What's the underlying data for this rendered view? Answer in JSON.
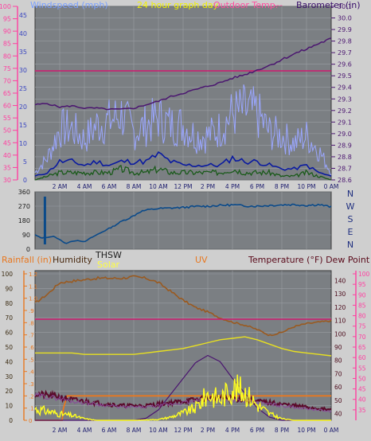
{
  "header": {
    "windspeed_label": "Windspeed (mph)",
    "graph_day_label": "24 hour graph day",
    "outdoor_temp_label": "Outdoor Temp.",
    "dash_label": "---",
    "barometer_label": "Barometer (in)"
  },
  "lower_header": {
    "rainfall_label": "Rainfall (in)",
    "humidity_label": "Humidity",
    "thsw_label": "THSW",
    "solar_label": "Solar",
    "uv_label": "UV",
    "temp_dew_label": "Temperature (°F) Dew Point (°F)"
  },
  "direction_labels": [
    "N",
    "W",
    "S",
    "E",
    "N"
  ],
  "x_tick_labels": [
    "2 AM",
    "4 AM",
    "6 AM",
    "8 AM",
    "10 AM",
    "12 PM",
    "2 PM",
    "4 PM",
    "6 PM",
    "8 PM",
    "10 PM",
    "0 AM"
  ],
  "colors": {
    "background": "#cfcfcf",
    "plot_bg": "#7b7f83",
    "grid": "#9a9ea3",
    "left_axis": "#ff3fa0",
    "barometer": "#4b1670",
    "wind_gust": "#9aa6ff",
    "wind_avg": "#0a1aa0",
    "wind_low": "#1a5a1a",
    "outdoor_temp": "#d01870",
    "direction": "#0a4a8a",
    "humidity": "#9a5a20",
    "temp": "#6a0a2a",
    "dew": "#6a0a2a",
    "uv": "#e87820",
    "solar": "#ffff20",
    "rain": "#e87820"
  },
  "chart_data": [
    {
      "type": "line",
      "title": "24 hour graph day",
      "ylabel_left": "Windspeed (mph)",
      "ylabel_right": "Barometer (in)",
      "x_range_hours": [
        0,
        24
      ],
      "ylim_left": [
        30,
        100
      ],
      "ylim_right": [
        28.6,
        30.1
      ],
      "left_ticks": [
        30,
        35,
        40,
        45,
        50,
        55,
        60,
        65,
        70,
        75,
        80,
        85,
        90,
        95,
        100
      ],
      "right_ticks": [
        28.6,
        28.7,
        28.8,
        28.9,
        29.0,
        29.1,
        29.2,
        29.3,
        29.4,
        29.5,
        29.6,
        29.7,
        29.8,
        29.9,
        30.0,
        30.1
      ],
      "wind_ticks": [
        0,
        5,
        10,
        15,
        20,
        25,
        30,
        35,
        40,
        45
      ],
      "series": [
        {
          "name": "Barometer (in)",
          "axis": "right",
          "x": [
            0,
            1,
            2,
            3,
            4,
            5,
            6,
            7,
            8,
            9,
            10,
            11,
            12,
            13,
            14,
            15,
            16,
            17,
            18,
            19,
            20,
            21,
            22,
            23,
            24
          ],
          "values": [
            29.25,
            29.26,
            29.23,
            29.24,
            29.22,
            29.22,
            29.21,
            29.21,
            29.22,
            29.25,
            29.28,
            29.32,
            29.35,
            29.38,
            29.41,
            29.44,
            29.48,
            29.51,
            29.55,
            29.59,
            29.64,
            29.69,
            29.73,
            29.78,
            29.82
          ]
        },
        {
          "name": "Outdoor Temp.",
          "axis": "left",
          "x": [
            0,
            24
          ],
          "values": [
            74,
            74
          ]
        },
        {
          "name": "Windspeed gust",
          "x": [
            0,
            1,
            2,
            3,
            4,
            5,
            6,
            7,
            8,
            9,
            10,
            11,
            12,
            13,
            14,
            15,
            16,
            17,
            18,
            19,
            20,
            21,
            22,
            23,
            24
          ],
          "values": [
            2,
            6,
            14,
            14,
            11,
            15,
            16,
            18,
            13,
            15,
            17,
            15,
            15,
            12,
            12,
            14,
            18,
            19,
            18,
            13,
            12,
            10,
            12,
            8,
            2
          ]
        },
        {
          "name": "Windspeed avg",
          "x": [
            0,
            1,
            2,
            3,
            4,
            5,
            6,
            7,
            8,
            9,
            10,
            11,
            12,
            13,
            14,
            15,
            16,
            17,
            18,
            19,
            20,
            21,
            22,
            23,
            24
          ],
          "values": [
            1,
            2,
            5,
            5,
            4,
            5,
            4,
            5,
            5,
            5,
            7,
            5,
            4,
            4,
            4,
            4,
            6,
            5,
            5,
            4,
            3,
            3,
            4,
            2,
            1
          ]
        },
        {
          "name": "Windspeed low",
          "x": [
            0,
            1,
            2,
            3,
            4,
            5,
            6,
            7,
            8,
            9,
            10,
            11,
            12,
            13,
            14,
            15,
            16,
            17,
            18,
            19,
            20,
            21,
            22,
            23,
            24
          ],
          "values": [
            0,
            1,
            2,
            2,
            2,
            2,
            2,
            3,
            2,
            2,
            3,
            2,
            2,
            2,
            2,
            2,
            3,
            2,
            2,
            2,
            1,
            1,
            2,
            1,
            0
          ]
        }
      ]
    },
    {
      "type": "line",
      "title": "",
      "ylabel_left": "Wind direction",
      "ylim_left": [
        0,
        360
      ],
      "left_ticks": [
        0,
        90,
        180,
        270,
        360
      ],
      "series": [
        {
          "name": "Wind direction",
          "x": [
            0,
            0.5,
            1,
            1.5,
            2,
            2.5,
            3,
            3.5,
            4,
            4.5,
            5,
            5.5,
            6,
            6.5,
            7,
            7.5,
            8,
            8.5,
            9,
            9.5,
            10,
            11,
            12,
            13,
            14,
            15,
            16,
            17,
            18,
            19,
            20,
            21,
            22,
            23,
            24
          ],
          "values": [
            90,
            70,
            75,
            80,
            60,
            35,
            50,
            55,
            45,
            70,
            90,
            110,
            130,
            150,
            175,
            190,
            210,
            235,
            245,
            250,
            255,
            258,
            262,
            268,
            270,
            275,
            278,
            272,
            270,
            275,
            278,
            280,
            275,
            280,
            265
          ]
        }
      ]
    },
    {
      "type": "line",
      "title": "",
      "ylabel_left": "Rainfall (in)",
      "ylabel_right": "Temperature (°F) Dew Point (°F)",
      "ylim_humidity": [
        0,
        100
      ],
      "ylim_rain": [
        0,
        1.2
      ],
      "ylim_uv": [
        0,
        14
      ],
      "ylim_temp": [
        35,
        145
      ],
      "ylim_dew": [
        30,
        100
      ],
      "humidity_ticks": [
        0,
        10,
        20,
        30,
        40,
        50,
        60,
        70,
        80,
        90,
        100
      ],
      "rain_ticks": [
        0,
        0.1,
        0.2,
        0.3,
        0.4,
        0.5,
        0.6,
        0.7,
        0.8,
        0.9,
        1.0,
        1.1,
        1.2
      ],
      "uv_ticks": [
        0,
        1,
        2,
        3,
        4,
        5,
        6,
        7,
        8,
        9,
        10,
        11,
        12,
        13,
        14
      ],
      "temp_ticks": [
        40,
        50,
        60,
        70,
        80,
        90,
        100,
        110,
        120,
        130,
        140
      ],
      "dew_ticks": [
        35,
        40,
        45,
        50,
        55,
        60,
        65,
        70,
        75,
        80,
        85,
        90,
        95,
        100
      ],
      "series": [
        {
          "name": "Humidity",
          "x": [
            0,
            1,
            2,
            3,
            4,
            5,
            6,
            7,
            8,
            9,
            10,
            11,
            12,
            13,
            14,
            15,
            16,
            17,
            18,
            19,
            20,
            21,
            22,
            23,
            24
          ],
          "values": [
            80,
            86,
            94,
            95,
            96,
            97,
            97,
            97,
            98,
            97,
            94,
            88,
            82,
            77,
            74,
            70,
            67,
            65,
            62,
            58,
            60,
            64,
            66,
            67,
            68
          ]
        },
        {
          "name": "Outdoor Temp.",
          "x": [
            0,
            24
          ],
          "values": [
            69,
            69
          ]
        },
        {
          "name": "THSW",
          "x": [
            0,
            1,
            2,
            3,
            4,
            5,
            6,
            7,
            8,
            9,
            10,
            11,
            12,
            13,
            14,
            15,
            16,
            17,
            18,
            19,
            20,
            21,
            22,
            23,
            24
          ],
          "values": [
            46,
            46,
            46,
            46,
            45,
            45,
            45,
            45,
            45,
            46,
            47,
            48,
            49,
            51,
            53,
            55,
            56,
            57,
            55,
            52,
            49,
            47,
            46,
            45,
            44
          ]
        },
        {
          "name": "Temperature",
          "x": [
            0,
            1,
            2,
            3,
            4,
            5,
            6,
            7,
            8,
            9,
            10,
            11,
            12,
            13,
            14,
            15,
            16,
            17,
            18,
            19,
            20,
            21,
            22,
            23,
            24
          ],
          "values": [
            18,
            17,
            16,
            14,
            13,
            12,
            11,
            10,
            10,
            10,
            11,
            12,
            13,
            14,
            15,
            15,
            15,
            14,
            13,
            12,
            11,
            10,
            9,
            8,
            7
          ]
        },
        {
          "name": "Dew Point",
          "x": [
            0,
            1,
            2,
            3,
            4,
            5,
            6,
            7,
            8,
            9,
            10,
            11,
            12,
            13,
            14,
            15,
            16,
            17,
            18,
            19,
            20,
            21,
            22,
            23,
            24
          ],
          "values": [
            17,
            16,
            15,
            13,
            12,
            11,
            10,
            9,
            9,
            9,
            10,
            11,
            12,
            13,
            14,
            14,
            14,
            13,
            12,
            11,
            10,
            9,
            8,
            7,
            6
          ]
        },
        {
          "name": "UV",
          "x": [
            0,
            8,
            9,
            10,
            11,
            12,
            13,
            14,
            15,
            16,
            17,
            18,
            19,
            20,
            24
          ],
          "values": [
            0,
            0,
            0.2,
            1,
            2.5,
            4,
            5.5,
            6.2,
            5.6,
            4,
            2.6,
            1.2,
            0.3,
            0,
            0
          ]
        },
        {
          "name": "Solar",
          "x": [
            0,
            1,
            2,
            3,
            4,
            5,
            6,
            7,
            8,
            9,
            10,
            11,
            12,
            13,
            14,
            15,
            16,
            17,
            18,
            19,
            20,
            21,
            22,
            23,
            24
          ],
          "values": [
            70,
            55,
            38,
            30,
            10,
            0,
            0,
            0,
            0,
            2,
            5,
            20,
            45,
            75,
            160,
            130,
            200,
            175,
            95,
            40,
            10,
            0,
            0,
            0,
            0
          ]
        },
        {
          "name": "Rainfall",
          "x": [
            0,
            2.2,
            2.3,
            2.6,
            3.0,
            24
          ],
          "values": [
            0,
            0,
            0.1,
            0.2,
            0.2,
            0.2
          ]
        }
      ]
    }
  ]
}
